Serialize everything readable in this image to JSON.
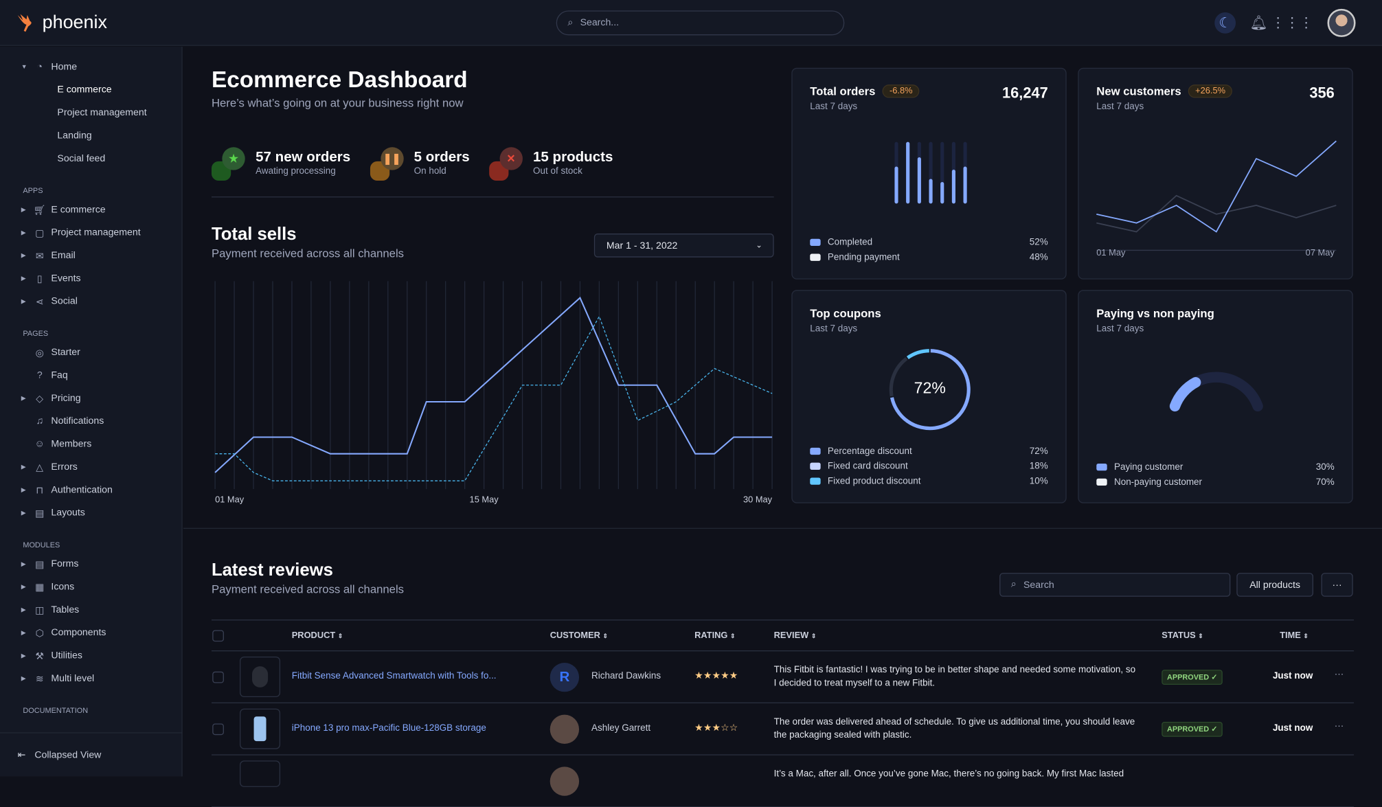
{
  "app": {
    "brand": "phoenix",
    "search_placeholder": "Search..."
  },
  "colors": {
    "accent": "#85a9ff",
    "cyan": "#60c6ff",
    "light": "#c7d5ff",
    "warning": "#f5a35c",
    "success": "#90d67f",
    "danger": "#ec1f00"
  },
  "sidebar": {
    "home": {
      "label": "Home",
      "children": [
        "E commerce",
        "Project management",
        "Landing",
        "Social feed"
      ]
    },
    "apps_label": "APPS",
    "apps": [
      {
        "label": "E commerce",
        "icon": "cart-icon"
      },
      {
        "label": "Project management",
        "icon": "clipboard-icon"
      },
      {
        "label": "Email",
        "icon": "mail-icon"
      },
      {
        "label": "Events",
        "icon": "bookmark-icon"
      },
      {
        "label": "Social",
        "icon": "share-icon"
      }
    ],
    "pages_label": "PAGES",
    "pages": [
      {
        "label": "Starter",
        "icon": "compass-icon",
        "caret": false
      },
      {
        "label": "Faq",
        "icon": "help-icon",
        "caret": false
      },
      {
        "label": "Pricing",
        "icon": "tag-icon",
        "caret": true
      },
      {
        "label": "Notifications",
        "icon": "bell-icon",
        "caret": false
      },
      {
        "label": "Members",
        "icon": "users-icon",
        "caret": false
      },
      {
        "label": "Errors",
        "icon": "alert-icon",
        "caret": true
      },
      {
        "label": "Authentication",
        "icon": "lock-icon",
        "caret": true
      },
      {
        "label": "Layouts",
        "icon": "layout-icon",
        "caret": true
      }
    ],
    "modules_label": "MODULES",
    "modules": [
      {
        "label": "Forms",
        "icon": "file-icon"
      },
      {
        "label": "Icons",
        "icon": "grid-icon"
      },
      {
        "label": "Tables",
        "icon": "columns-icon"
      },
      {
        "label": "Components",
        "icon": "package-icon"
      },
      {
        "label": "Utilities",
        "icon": "tool-icon"
      },
      {
        "label": "Multi level",
        "icon": "layers-icon"
      }
    ],
    "documentation_label": "DOCUMENTATION",
    "collapsed_label": "Collapsed View"
  },
  "header": {
    "title": "Ecommerce Dashboard",
    "subtitle": "Here’s what’s going on at your business right now"
  },
  "stats": [
    {
      "value": "57 new orders",
      "label": "Awating processing",
      "icon": "star-icon"
    },
    {
      "value": "5 orders",
      "label": "On hold",
      "icon": "pause-icon"
    },
    {
      "value": "15 products",
      "label": "Out of stock",
      "icon": "x-icon"
    }
  ],
  "total_sells": {
    "title": "Total sells",
    "subtitle": "Payment received across all channels",
    "date_range": "Mar 1 - 31, 2022"
  },
  "chart_data": [
    {
      "type": "line",
      "x_ticks": [
        "01 May",
        "15 May",
        "30 May"
      ],
      "xlim": [
        1,
        30
      ],
      "ylim": [
        0,
        100
      ],
      "grid": "vertical",
      "series": [
        {
          "style": "solid",
          "x": [
            1,
            3,
            5,
            7,
            11,
            12,
            14,
            20,
            22,
            24,
            26,
            27,
            28,
            30
          ],
          "values": [
            8,
            25,
            25,
            17,
            17,
            42,
            42,
            92,
            50,
            50,
            17,
            17,
            25,
            25
          ]
        },
        {
          "style": "dashed",
          "x": [
            1,
            2,
            3,
            4,
            14,
            17,
            19,
            21,
            23,
            25,
            27,
            30
          ],
          "values": [
            17,
            17,
            8,
            4,
            4,
            50,
            50,
            83,
            33,
            42,
            58,
            46
          ]
        }
      ]
    },
    {
      "type": "bar",
      "title": "Total orders",
      "values": [
        0.6,
        1.0,
        0.75,
        0.4,
        0.35,
        0.55,
        0.6
      ],
      "ylim": [
        0,
        1
      ]
    },
    {
      "type": "line",
      "title": "New customers",
      "x_ticks": [
        "01 May",
        "07 May"
      ],
      "series": [
        {
          "values": [
            41,
            31,
            51,
            21,
            104,
            84,
            124
          ]
        },
        {
          "values": [
            31,
            21,
            62,
            41,
            51,
            37,
            51
          ]
        }
      ]
    },
    {
      "type": "pie",
      "title": "Top coupons",
      "center_label": "72%",
      "values": [
        72,
        18,
        10
      ]
    },
    {
      "type": "pie",
      "title": "Paying vs non paying",
      "values": [
        30,
        70
      ]
    }
  ],
  "cards": {
    "total_orders": {
      "title": "Total orders",
      "badge": "-6.8%",
      "value": "16,247",
      "period": "Last 7 days",
      "legend": [
        {
          "label": "Completed",
          "value": "52%",
          "color": "#85a9ff"
        },
        {
          "label": "Pending payment",
          "value": "48%",
          "color": "#eff2f6"
        }
      ]
    },
    "new_customers": {
      "title": "New customers",
      "badge": "+26.5%",
      "value": "356",
      "period": "Last 7 days",
      "x_start": "01 May",
      "x_end": "07 May"
    },
    "top_coupons": {
      "title": "Top coupons",
      "period": "Last 7 days",
      "center": "72%",
      "legend": [
        {
          "label": "Percentage discount",
          "value": "72%",
          "color": "#85a9ff"
        },
        {
          "label": "Fixed card discount",
          "value": "18%",
          "color": "#c7d5ff"
        },
        {
          "label": "Fixed product discount",
          "value": "10%",
          "color": "#60c6ff"
        }
      ]
    },
    "paying": {
      "title": "Paying vs non paying",
      "period": "Last 7 days",
      "legend": [
        {
          "label": "Paying customer",
          "value": "30%",
          "color": "#85a9ff"
        },
        {
          "label": "Non-paying customer",
          "value": "70%",
          "color": "#eff2f6"
        }
      ]
    }
  },
  "reviews": {
    "title": "Latest reviews",
    "subtitle": "Payment received across all channels",
    "search_placeholder": "Search",
    "filter_label": "All products",
    "more_label": "···",
    "columns": [
      "PRODUCT",
      "CUSTOMER",
      "RATING",
      "REVIEW",
      "STATUS",
      "TIME"
    ],
    "rows": [
      {
        "product": "Fitbit Sense Advanced Smartwatch with Tools fo...",
        "customer": "Richard Dawkins",
        "initial": "R",
        "rating": 5,
        "stars": "★★★★★",
        "review": "This Fitbit is fantastic! I was trying to be in better shape and needed some motivation, so I decided to treat myself to a new Fitbit.",
        "status": "APPROVED ✓",
        "time": "Just now"
      },
      {
        "product": "iPhone 13 pro max-Pacific Blue-128GB storage",
        "customer": "Ashley Garrett",
        "initial": "",
        "rating": 3,
        "stars": "★★★☆☆",
        "review": "The order was delivered ahead of schedule. To give us additional time, you should leave the packaging sealed with plastic.",
        "status": "APPROVED ✓",
        "time": "Just now"
      },
      {
        "review": "It’s a Mac, after all. Once you’ve gone Mac, there’s no going back. My first Mac lasted"
      }
    ]
  }
}
